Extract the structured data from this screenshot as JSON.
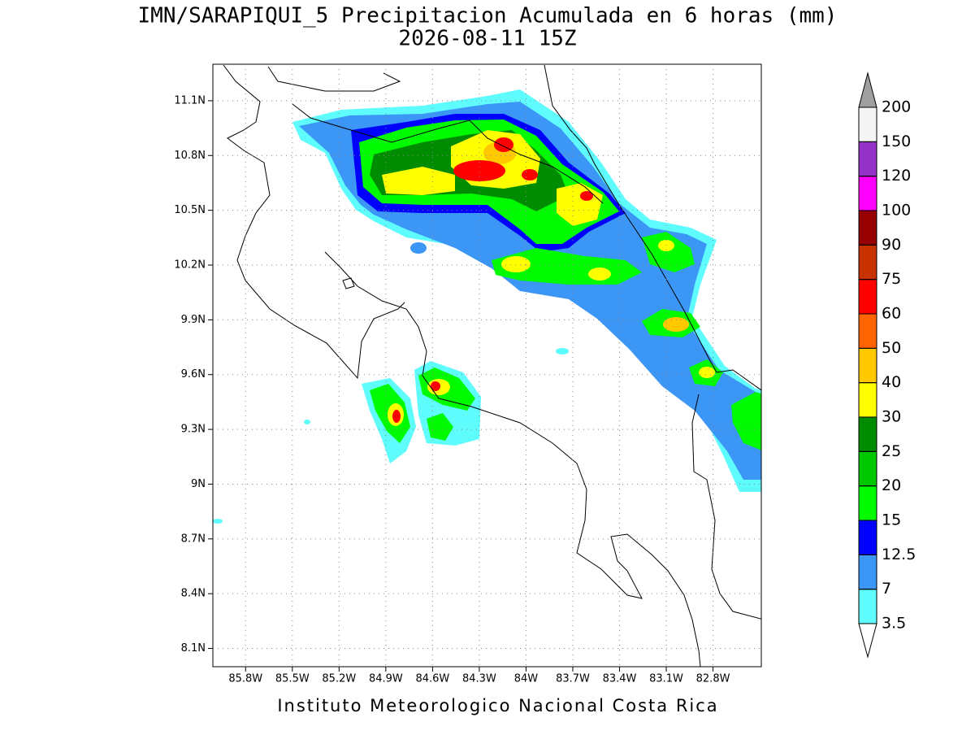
{
  "chart_data": {
    "type": "contour-map",
    "title": "IMN/SARAPIQUI_5 Precipitacion Acumulada en 6 horas (mm)",
    "subtitle": "2026-08-11 15Z",
    "footer": "Instituto Meteorologico Nacional Costa Rica",
    "xlim": [
      -86.01,
      -82.49
    ],
    "ylim": [
      8.0,
      11.3
    ],
    "xticks": [
      {
        "value": -85.8,
        "label": "85.8W"
      },
      {
        "value": -85.5,
        "label": "85.5W"
      },
      {
        "value": -85.2,
        "label": "85.2W"
      },
      {
        "value": -84.9,
        "label": "84.9W"
      },
      {
        "value": -84.6,
        "label": "84.6W"
      },
      {
        "value": -84.3,
        "label": "84.3W"
      },
      {
        "value": -84.0,
        "label": "84W"
      },
      {
        "value": -83.7,
        "label": "83.7W"
      },
      {
        "value": -83.4,
        "label": "83.4W"
      },
      {
        "value": -83.1,
        "label": "83.1W"
      },
      {
        "value": -82.8,
        "label": "82.8W"
      }
    ],
    "yticks": [
      {
        "value": 11.1,
        "label": "11.1N"
      },
      {
        "value": 10.8,
        "label": "10.8N"
      },
      {
        "value": 10.5,
        "label": "10.5N"
      },
      {
        "value": 10.2,
        "label": "10.2N"
      },
      {
        "value": 9.9,
        "label": "9.9N"
      },
      {
        "value": 9.6,
        "label": "9.6N"
      },
      {
        "value": 9.3,
        "label": "9.3N"
      },
      {
        "value": 9.0,
        "label": "9N"
      },
      {
        "value": 8.7,
        "label": "8.7N"
      },
      {
        "value": 8.4,
        "label": "8.4N"
      },
      {
        "value": 8.1,
        "label": "8.1N"
      }
    ],
    "grid": true,
    "levels": [
      3.5,
      7,
      12.5,
      15,
      20,
      25,
      30,
      40,
      50,
      60,
      75,
      90,
      100,
      120,
      150,
      200
    ],
    "colors": [
      "#ffffff",
      "#5efcfc",
      "#3c96f6",
      "#0000ff",
      "#00fa00",
      "#00c800",
      "#008c00",
      "#ffff00",
      "#ffc800",
      "#ff6400",
      "#ff0000",
      "#c83200",
      "#960000",
      "#ff00ff",
      "#9632c8",
      "#f5f5f5",
      "#a0a0a0"
    ]
  }
}
